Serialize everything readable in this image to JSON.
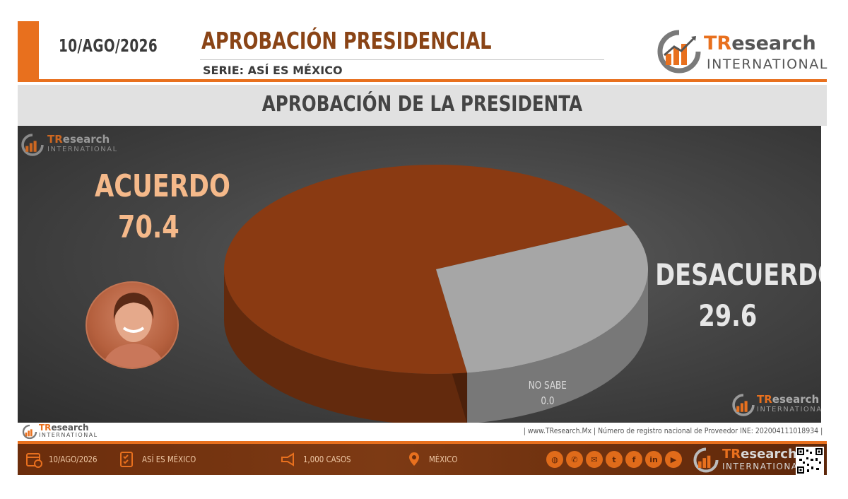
{
  "header": {
    "date": "10/AGO/2026",
    "title": "APROBACIÓN PRESIDENCIAL",
    "series": "SERIE: ASÍ ES MÉXICO"
  },
  "brand": {
    "tr": "TR",
    "rest": "esearch",
    "international": "INTERNATIONAL",
    "accent_color": "#e8701e",
    "dark_color": "#6b2d0c"
  },
  "chart_data": {
    "type": "pie",
    "title": "APROBACIÓN DE LA PRESIDENTA",
    "slices": [
      {
        "label": "ACUERDO",
        "value": 70.4,
        "display": "70.4",
        "color": "#8a3a12"
      },
      {
        "label": "DESACUERDO",
        "value": 29.6,
        "display": "29.6",
        "color": "#a6a6a6"
      },
      {
        "label": "NO SABE",
        "value": 0.0,
        "display": "0.0",
        "color": "#6a6a6a"
      }
    ],
    "style": "3d"
  },
  "info_strip": {
    "text": "| www.TResearch.Mx | Número de registro nacional de Proveedor INE: 202004111018934 |"
  },
  "footer": {
    "date": "10/AGO/2026",
    "series": "ASÍ ES MÉXICO",
    "cases": "1,000 CASOS",
    "place": "MÉXICO",
    "icons": [
      "calendar-icon",
      "survey-icon",
      "megaphone-icon",
      "map-pin-icon"
    ],
    "social": [
      "globe-icon",
      "phone-icon",
      "email-icon",
      "twitter-icon",
      "facebook-icon",
      "linkedin-icon",
      "youtube-icon"
    ]
  }
}
